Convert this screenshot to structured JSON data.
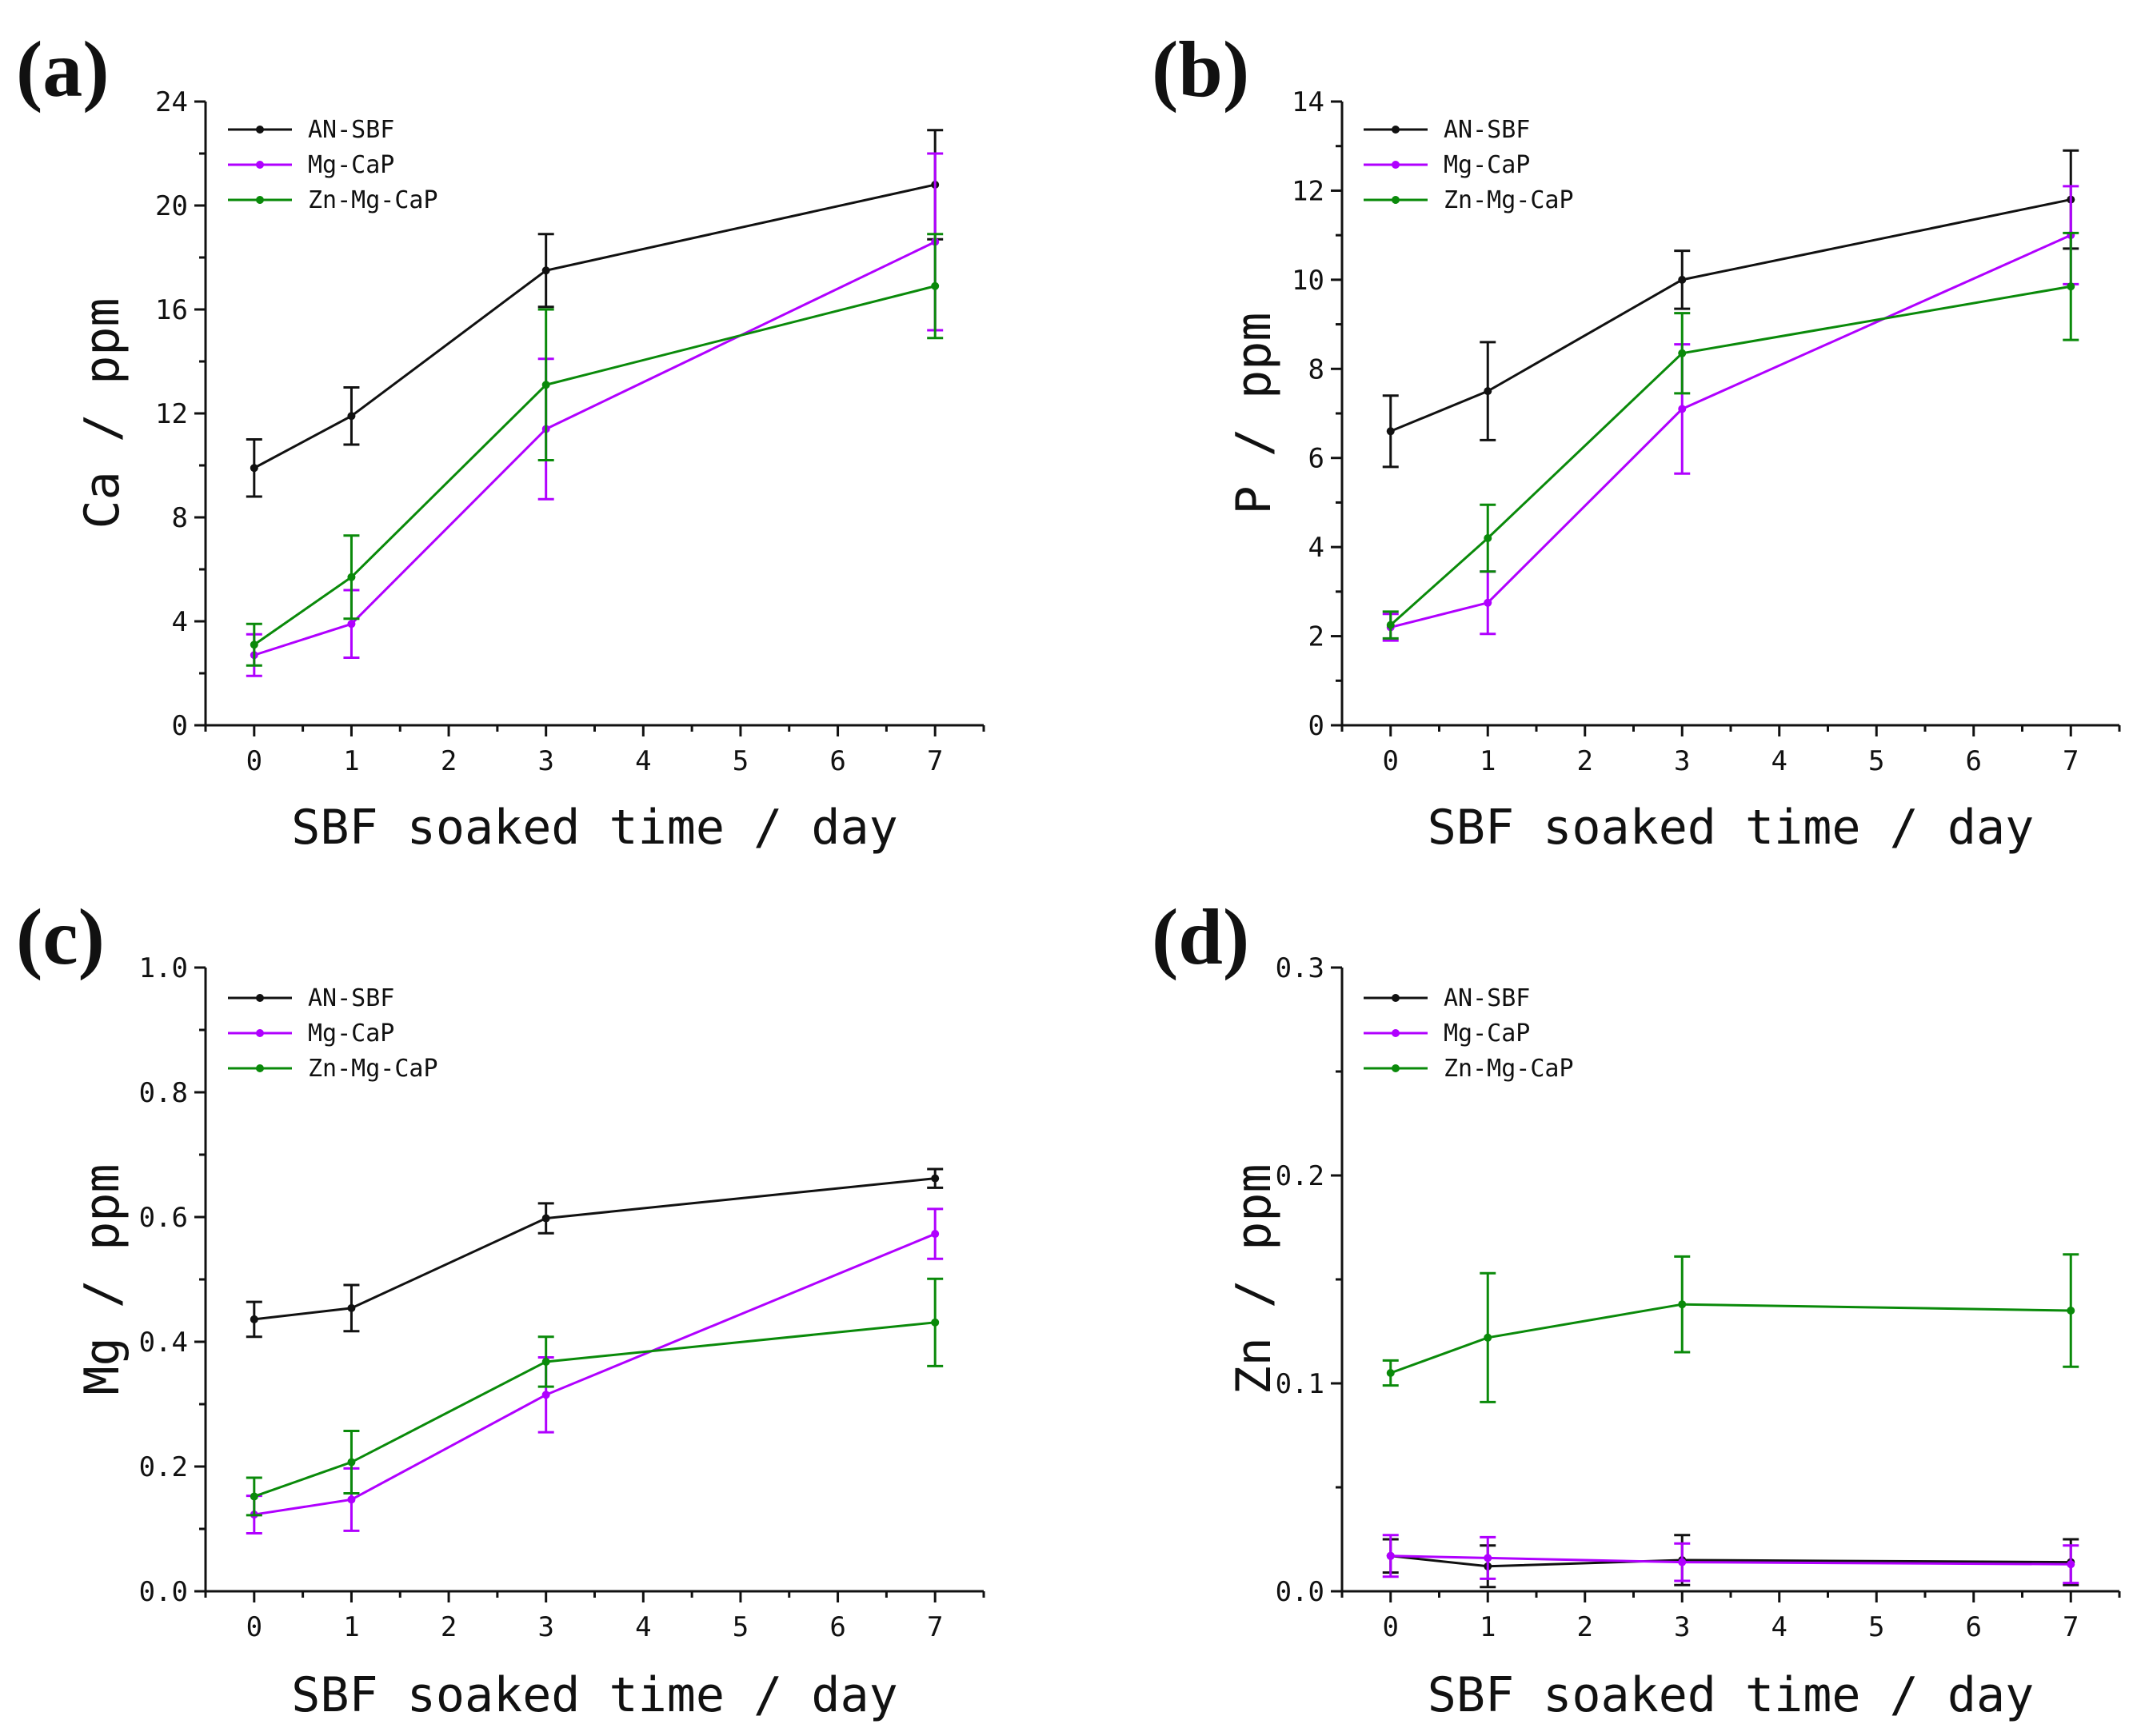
{
  "figure": {
    "description_text_none": ""
  },
  "colors": {
    "AN-SBF": "#111111",
    "Mg-CaP": "#b000ff",
    "Zn-Mg-CaP": "#0a8a0a",
    "axis": "#111111"
  },
  "chart_data": [
    {
      "panel": "(a)",
      "type": "line",
      "title": "",
      "xlabel": "SBF soaked time / day",
      "ylabel": "Ca / ppm",
      "xlim": [
        -0.5,
        7.5
      ],
      "ylim": [
        0,
        24
      ],
      "xticks": [
        0,
        1,
        2,
        3,
        4,
        5,
        6,
        7
      ],
      "yticks": [
        0,
        4,
        8,
        12,
        16,
        20,
        24
      ],
      "ytick_labels": [
        "0",
        "4",
        "8",
        "12",
        "16",
        "20",
        "24"
      ],
      "xtick_labels": [
        "0",
        "1",
        "2",
        "3",
        "4",
        "5",
        "6",
        "7"
      ],
      "legend": [
        "AN-SBF",
        "Mg-CaP",
        "Zn-Mg-CaP"
      ],
      "legend_position": "top-left",
      "series": [
        {
          "name": "AN-SBF",
          "x": [
            0,
            1,
            3,
            7
          ],
          "y": [
            9.9,
            11.9,
            17.5,
            20.8
          ],
          "err": [
            1.1,
            1.1,
            1.4,
            2.1
          ]
        },
        {
          "name": "Mg-CaP",
          "x": [
            0,
            1,
            3,
            7
          ],
          "y": [
            2.7,
            3.9,
            11.4,
            18.6
          ],
          "err": [
            0.8,
            1.3,
            2.7,
            3.4
          ]
        },
        {
          "name": "Zn-Mg-CaP",
          "x": [
            0,
            1,
            3,
            7
          ],
          "y": [
            3.1,
            5.7,
            13.1,
            16.9
          ],
          "err": [
            0.8,
            1.6,
            2.9,
            2.0
          ]
        }
      ]
    },
    {
      "panel": "(b)",
      "type": "line",
      "title": "",
      "xlabel": "SBF soaked time / day",
      "ylabel": "P / ppm",
      "xlim": [
        -0.5,
        7.5
      ],
      "ylim": [
        0,
        14
      ],
      "xticks": [
        0,
        1,
        2,
        3,
        4,
        5,
        6,
        7
      ],
      "yticks": [
        0,
        2,
        4,
        6,
        8,
        10,
        12,
        14
      ],
      "ytick_labels": [
        "0",
        "2",
        "4",
        "6",
        "8",
        "10",
        "12",
        "14"
      ],
      "xtick_labels": [
        "0",
        "1",
        "2",
        "3",
        "4",
        "5",
        "6",
        "7"
      ],
      "legend": [
        "AN-SBF",
        "Mg-CaP",
        "Zn-Mg-CaP"
      ],
      "legend_position": "top-left",
      "series": [
        {
          "name": "AN-SBF",
          "x": [
            0,
            1,
            3,
            7
          ],
          "y": [
            6.6,
            7.5,
            10.0,
            11.8
          ],
          "err": [
            0.8,
            1.1,
            0.65,
            1.1
          ]
        },
        {
          "name": "Mg-CaP",
          "x": [
            0,
            1,
            3,
            7
          ],
          "y": [
            2.2,
            2.75,
            7.1,
            11.0
          ],
          "err": [
            0.3,
            0.7,
            1.45,
            1.1
          ]
        },
        {
          "name": "Zn-Mg-CaP",
          "x": [
            0,
            1,
            3,
            7
          ],
          "y": [
            2.25,
            4.2,
            8.35,
            9.85
          ],
          "err": [
            0.3,
            0.75,
            0.9,
            1.2
          ]
        }
      ]
    },
    {
      "panel": "(c)",
      "type": "line",
      "title": "",
      "xlabel": "SBF soaked time / day",
      "ylabel": "Mg / ppm",
      "xlim": [
        -0.5,
        7.5
      ],
      "ylim": [
        0,
        1.0
      ],
      "xticks": [
        0,
        1,
        2,
        3,
        4,
        5,
        6,
        7
      ],
      "yticks": [
        0,
        0.2,
        0.4,
        0.6,
        0.8,
        1.0
      ],
      "ytick_labels": [
        "0.0",
        "0.2",
        "0.4",
        "0.6",
        "0.8",
        "1.0"
      ],
      "xtick_labels": [
        "0",
        "1",
        "2",
        "3",
        "4",
        "5",
        "6",
        "7"
      ],
      "legend": [
        "AN-SBF",
        "Mg-CaP",
        "Zn-Mg-CaP"
      ],
      "legend_position": "top-left",
      "series": [
        {
          "name": "AN-SBF",
          "x": [
            0,
            1,
            3,
            7
          ],
          "y": [
            0.436,
            0.454,
            0.598,
            0.662
          ],
          "err": [
            0.028,
            0.037,
            0.024,
            0.015
          ]
        },
        {
          "name": "Mg-CaP",
          "x": [
            0,
            1,
            3,
            7
          ],
          "y": [
            0.123,
            0.147,
            0.315,
            0.573
          ],
          "err": [
            0.03,
            0.05,
            0.06,
            0.04
          ]
        },
        {
          "name": "Zn-Mg-CaP",
          "x": [
            0,
            1,
            3,
            7
          ],
          "y": [
            0.152,
            0.207,
            0.368,
            0.431
          ],
          "err": [
            0.03,
            0.05,
            0.04,
            0.07
          ]
        }
      ]
    },
    {
      "panel": "(d)",
      "type": "line",
      "title": "",
      "xlabel": "SBF soaked time / day",
      "ylabel": "Zn / ppm",
      "xlim": [
        -0.5,
        7.5
      ],
      "ylim": [
        0,
        0.3
      ],
      "xticks": [
        0,
        1,
        2,
        3,
        4,
        5,
        6,
        7
      ],
      "yticks": [
        0,
        0.1,
        0.2,
        0.3
      ],
      "ytick_labels": [
        "0.0",
        "0.1",
        "0.2",
        "0.3"
      ],
      "xtick_labels": [
        "0",
        "1",
        "2",
        "3",
        "4",
        "5",
        "6",
        "7"
      ],
      "legend": [
        "AN-SBF",
        "Mg-CaP",
        "Zn-Mg-CaP"
      ],
      "legend_position": "top-left",
      "series": [
        {
          "name": "AN-SBF",
          "x": [
            0,
            1,
            3,
            7
          ],
          "y": [
            0.017,
            0.012,
            0.015,
            0.014
          ],
          "err": [
            0.008,
            0.01,
            0.012,
            0.011
          ]
        },
        {
          "name": "Mg-CaP",
          "x": [
            0,
            1,
            3,
            7
          ],
          "y": [
            0.017,
            0.016,
            0.014,
            0.013
          ],
          "err": [
            0.01,
            0.01,
            0.009,
            0.009
          ]
        },
        {
          "name": "Zn-Mg-CaP",
          "x": [
            0,
            1,
            3,
            7
          ],
          "y": [
            0.105,
            0.122,
            0.138,
            0.135
          ],
          "err": [
            0.006,
            0.031,
            0.023,
            0.027
          ]
        }
      ]
    }
  ]
}
